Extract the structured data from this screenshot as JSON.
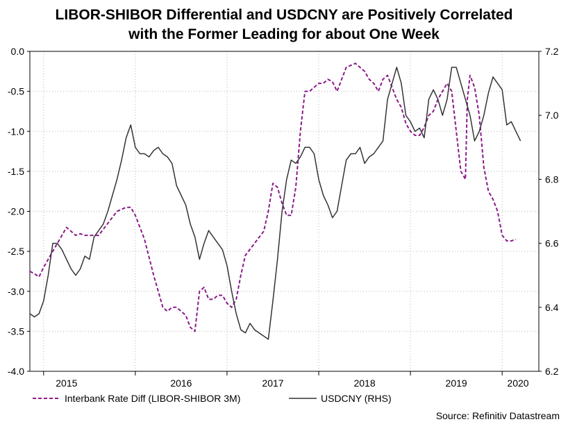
{
  "chart_data": {
    "type": "line",
    "title_line1": "LIBOR-SHIBOR Differential and USDCNY are Positively Correlated",
    "title_line2": "with the Former Leading for about One Week",
    "x_labels": [
      "2015",
      "2016",
      "2017",
      "2018",
      "2019",
      "2020"
    ],
    "x_range": [
      2014.85,
      2020.4
    ],
    "y_left": {
      "range": [
        -4.0,
        0.0
      ],
      "ticks": [
        "0.0",
        "-0.5",
        "-1.0",
        "-1.5",
        "-2.0",
        "-2.5",
        "-3.0",
        "-3.5",
        "-4.0"
      ]
    },
    "y_right": {
      "range": [
        6.2,
        7.2
      ],
      "ticks": [
        "7.2",
        "7.0",
        "6.8",
        "6.6",
        "6.4",
        "6.2"
      ]
    },
    "series": [
      {
        "name": "Interbank Rate Diff (LIBOR-SHIBOR 3M)",
        "axis": "left",
        "color": "#8b1a89",
        "style": "dashed",
        "x": [
          2014.85,
          2014.9,
          2014.95,
          2015.0,
          2015.05,
          2015.1,
          2015.15,
          2015.2,
          2015.25,
          2015.3,
          2015.35,
          2015.4,
          2015.45,
          2015.5,
          2015.6,
          2015.7,
          2015.8,
          2015.9,
          2015.95,
          2016.0,
          2016.05,
          2016.1,
          2016.2,
          2016.3,
          2016.35,
          2016.4,
          2016.45,
          2016.5,
          2016.55,
          2016.6,
          2016.65,
          2016.7,
          2016.75,
          2016.8,
          2016.85,
          2016.9,
          2016.95,
          2017.0,
          2017.05,
          2017.1,
          2017.15,
          2017.2,
          2017.3,
          2017.4,
          2017.45,
          2017.5,
          2017.55,
          2017.6,
          2017.65,
          2017.7,
          2017.75,
          2017.8,
          2017.85,
          2017.9,
          2017.95,
          2018.0,
          2018.05,
          2018.1,
          2018.15,
          2018.2,
          2018.3,
          2018.4,
          2018.5,
          2018.55,
          2018.6,
          2018.65,
          2018.7,
          2018.75,
          2018.8,
          2018.85,
          2018.9,
          2018.95,
          2019.0,
          2019.05,
          2019.1,
          2019.15,
          2019.2,
          2019.25,
          2019.3,
          2019.35,
          2019.4,
          2019.45,
          2019.5,
          2019.55,
          2019.6,
          2019.62,
          2019.65,
          2019.7,
          2019.75,
          2019.8,
          2019.85,
          2019.9,
          2019.95,
          2020.0,
          2020.05,
          2020.1,
          2020.15
        ],
        "values": [
          -2.75,
          -2.78,
          -2.82,
          -2.7,
          -2.6,
          -2.5,
          -2.4,
          -2.3,
          -2.2,
          -2.25,
          -2.3,
          -2.28,
          -2.3,
          -2.3,
          -2.3,
          -2.15,
          -2.0,
          -1.95,
          -1.95,
          -2.05,
          -2.2,
          -2.35,
          -2.8,
          -3.2,
          -3.25,
          -3.2,
          -3.2,
          -3.25,
          -3.3,
          -3.45,
          -3.5,
          -3.0,
          -2.95,
          -3.1,
          -3.1,
          -3.05,
          -3.05,
          -3.15,
          -3.2,
          -3.1,
          -2.8,
          -2.55,
          -2.4,
          -2.25,
          -2.0,
          -1.65,
          -1.7,
          -1.9,
          -2.05,
          -2.05,
          -1.7,
          -1.0,
          -0.5,
          -0.5,
          -0.45,
          -0.4,
          -0.4,
          -0.35,
          -0.38,
          -0.5,
          -0.2,
          -0.15,
          -0.25,
          -0.35,
          -0.4,
          -0.5,
          -0.35,
          -0.3,
          -0.45,
          -0.6,
          -0.7,
          -0.9,
          -1.0,
          -1.05,
          -1.05,
          -0.95,
          -0.8,
          -0.75,
          -0.6,
          -0.5,
          -0.4,
          -0.5,
          -1.0,
          -1.5,
          -1.6,
          -0.6,
          -0.3,
          -0.45,
          -0.8,
          -1.45,
          -1.75,
          -1.85,
          -2.0,
          -2.3,
          -2.37,
          -2.37,
          -2.35
        ],
        "x_offset_years": 0.0
      },
      {
        "name": "USDCNY (RHS)",
        "axis": "right",
        "color": "#333333",
        "style": "solid",
        "x": [
          2014.85,
          2014.9,
          2014.95,
          2015.0,
          2015.05,
          2015.1,
          2015.15,
          2015.2,
          2015.25,
          2015.3,
          2015.35,
          2015.4,
          2015.45,
          2015.5,
          2015.55,
          2015.6,
          2015.65,
          2015.7,
          2015.75,
          2015.8,
          2015.85,
          2015.9,
          2015.95,
          2016.0,
          2016.05,
          2016.1,
          2016.15,
          2016.2,
          2016.25,
          2016.3,
          2016.35,
          2016.4,
          2016.45,
          2016.5,
          2016.55,
          2016.6,
          2016.65,
          2016.7,
          2016.75,
          2016.8,
          2016.85,
          2016.9,
          2016.95,
          2017.0,
          2017.05,
          2017.1,
          2017.15,
          2017.2,
          2017.25,
          2017.3,
          2017.35,
          2017.4,
          2017.45,
          2017.5,
          2017.55,
          2017.6,
          2017.65,
          2017.7,
          2017.75,
          2017.8,
          2017.85,
          2017.9,
          2017.95,
          2018.0,
          2018.05,
          2018.1,
          2018.15,
          2018.2,
          2018.25,
          2018.3,
          2018.35,
          2018.4,
          2018.45,
          2018.5,
          2018.55,
          2018.6,
          2018.65,
          2018.7,
          2018.75,
          2018.8,
          2018.85,
          2018.9,
          2018.95,
          2019.0,
          2019.05,
          2019.1,
          2019.15,
          2019.2,
          2019.25,
          2019.3,
          2019.35,
          2019.4,
          2019.45,
          2019.5,
          2019.55,
          2019.6,
          2019.65,
          2019.7,
          2019.75,
          2019.8,
          2019.85,
          2019.9,
          2019.95,
          2020.0,
          2020.05,
          2020.1,
          2020.15,
          2020.2
        ],
        "values": [
          6.38,
          6.37,
          6.38,
          6.42,
          6.5,
          6.6,
          6.6,
          6.58,
          6.55,
          6.52,
          6.5,
          6.52,
          6.56,
          6.55,
          6.62,
          6.64,
          6.66,
          6.7,
          6.75,
          6.8,
          6.86,
          6.93,
          6.97,
          6.9,
          6.88,
          6.88,
          6.87,
          6.89,
          6.9,
          6.88,
          6.87,
          6.85,
          6.78,
          6.75,
          6.72,
          6.66,
          6.62,
          6.55,
          6.6,
          6.64,
          6.62,
          6.6,
          6.58,
          6.53,
          6.45,
          6.38,
          6.33,
          6.32,
          6.35,
          6.33,
          6.32,
          6.31,
          6.3,
          6.42,
          6.55,
          6.7,
          6.8,
          6.86,
          6.85,
          6.87,
          6.9,
          6.9,
          6.88,
          6.8,
          6.75,
          6.72,
          6.68,
          6.7,
          6.78,
          6.86,
          6.88,
          6.88,
          6.9,
          6.85,
          6.87,
          6.88,
          6.9,
          6.92,
          7.05,
          7.1,
          7.15,
          7.1,
          7.0,
          6.98,
          6.95,
          6.96,
          6.93,
          7.05,
          7.08,
          7.05,
          7.0,
          7.05,
          7.15,
          7.15,
          7.1,
          7.05,
          7.0,
          6.92,
          6.95,
          7.0,
          7.07,
          7.12,
          7.1,
          7.08,
          6.97,
          6.98,
          6.95,
          6.92
        ],
        "x_offset_years": 0.0
      }
    ],
    "legend": [
      "Interbank Rate Diff (LIBOR-SHIBOR 3M)",
      "USDCNY (RHS)"
    ],
    "source": "Source: Refinitiv Datastream",
    "grid": true
  }
}
